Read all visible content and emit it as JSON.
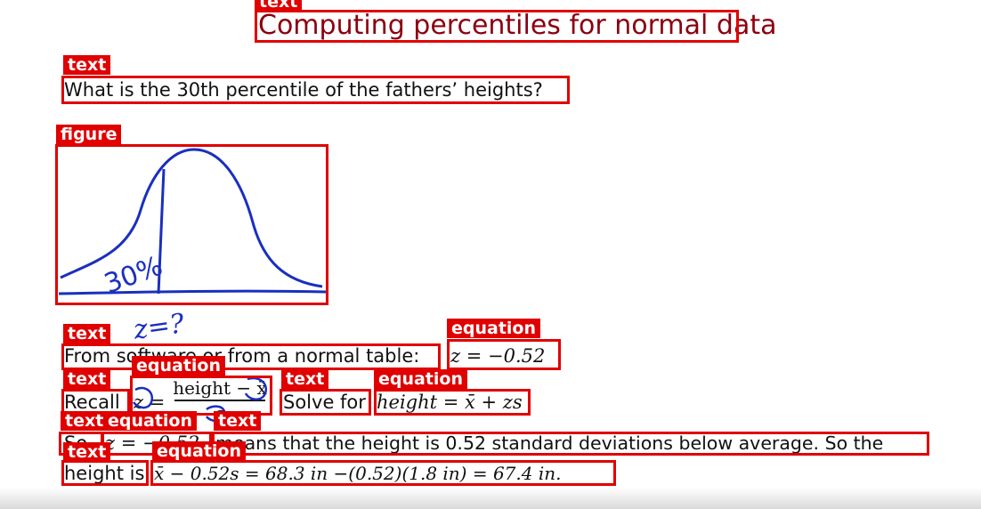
{
  "slide": {
    "title": "Computing percentiles for normal data",
    "question": "What is the 30th percentile of the fathers’ heights?",
    "line1_text": "From software or from a normal table:",
    "line1_eq": "z = −0.52",
    "recall_label": "Recall",
    "recall_eq_lhs": "z =",
    "recall_eq_numerator": "height − x̄",
    "recall_eq_denominator": "s",
    "solve_label": "Solve for",
    "solve_eq": "height = x̄ + zs",
    "line3_prefix": "So",
    "line3_eq": "z = −0.52",
    "line3_text": "means that the height is 0.52 standard deviations below average. So the",
    "line4_label": "height is",
    "line4_eq": "x̄ − 0.52s = 68.3 in −(0.52)(1.8 in) = 67.4 in."
  },
  "annotations": {
    "text": "text",
    "equation": "equation",
    "figure": "figure"
  },
  "handwriting": {
    "figure_label": "30%",
    "z_note": "z=?"
  },
  "colors": {
    "box": "#e00000",
    "title": "#8b0010",
    "ink": "#1a2fbf"
  }
}
